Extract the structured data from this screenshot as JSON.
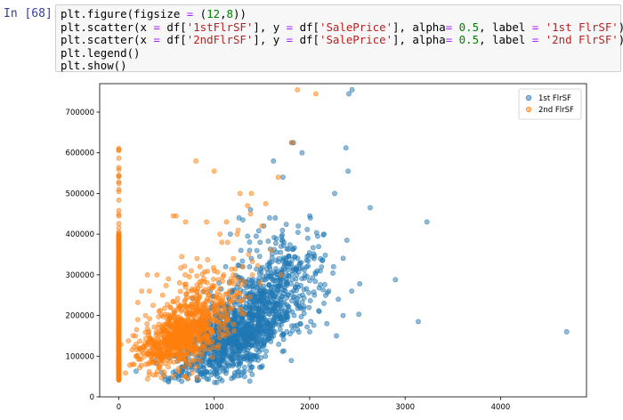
{
  "cell": {
    "prompt": "In [68]:",
    "code_lines": [
      [
        {
          "t": "plt.figure(figsize "
        },
        {
          "t": "=",
          "c": "op"
        },
        {
          "t": " ("
        },
        {
          "t": "12",
          "c": "num"
        },
        {
          "t": ","
        },
        {
          "t": "8",
          "c": "num"
        },
        {
          "t": "))"
        }
      ],
      [
        {
          "t": "plt.scatter(x "
        },
        {
          "t": "=",
          "c": "op"
        },
        {
          "t": " df["
        },
        {
          "t": "'1stFlrSF'",
          "c": "str"
        },
        {
          "t": "], y "
        },
        {
          "t": "=",
          "c": "op"
        },
        {
          "t": " df["
        },
        {
          "t": "'SalePrice'",
          "c": "str"
        },
        {
          "t": "], alpha"
        },
        {
          "t": "=",
          "c": "op"
        },
        {
          "t": " "
        },
        {
          "t": "0.5",
          "c": "num"
        },
        {
          "t": ", label "
        },
        {
          "t": "=",
          "c": "op"
        },
        {
          "t": " "
        },
        {
          "t": "'1st FlrSF'",
          "c": "str"
        },
        {
          "t": ")"
        }
      ],
      [
        {
          "t": "plt.scatter(x "
        },
        {
          "t": "=",
          "c": "op"
        },
        {
          "t": " df["
        },
        {
          "t": "'2ndFlrSF'",
          "c": "str"
        },
        {
          "t": "], y "
        },
        {
          "t": "=",
          "c": "op"
        },
        {
          "t": " df["
        },
        {
          "t": "'SalePrice'",
          "c": "str"
        },
        {
          "t": "], alpha"
        },
        {
          "t": "=",
          "c": "op"
        },
        {
          "t": " "
        },
        {
          "t": "0.5",
          "c": "num"
        },
        {
          "t": ", label "
        },
        {
          "t": "=",
          "c": "op"
        },
        {
          "t": " "
        },
        {
          "t": "'2nd FlrSF'",
          "c": "str"
        },
        {
          "t": ")"
        }
      ],
      [
        {
          "t": "plt.legend()"
        }
      ],
      [
        {
          "t": "plt.show()"
        }
      ]
    ]
  },
  "chart_data": {
    "type": "scatter",
    "xlim": [
      -200,
      4900
    ],
    "ylim": [
      0,
      770000
    ],
    "x_ticks": [
      0,
      1000,
      2000,
      3000,
      4000
    ],
    "y_ticks": [
      0,
      100000,
      200000,
      300000,
      400000,
      500000,
      600000,
      700000
    ],
    "legend_position": "top-right",
    "grid": false,
    "series": [
      {
        "name": "1st FlrSF",
        "color": "#1f77b4",
        "points": [
          [
            4692,
            160000
          ],
          [
            3228,
            430000
          ],
          [
            3138,
            185000
          ],
          [
            2898,
            288000
          ],
          [
            2633,
            465000
          ],
          [
            2524,
            278000
          ],
          [
            2515,
            203000
          ],
          [
            2444,
            755000
          ],
          [
            2411,
            745000
          ],
          [
            2402,
            555000
          ],
          [
            2380,
            612000
          ],
          [
            2390,
            385000
          ],
          [
            2261,
            500000
          ],
          [
            2046,
            340000
          ],
          [
            2000,
            445000
          ],
          [
            2200,
            260000
          ],
          [
            1831,
            625000
          ],
          [
            1810,
            625000
          ],
          [
            1720,
            540000
          ],
          [
            1640,
            440000
          ],
          [
            1620,
            580000
          ],
          [
            1580,
            320000
          ],
          [
            1520,
            420000
          ],
          [
            1440,
            395000
          ],
          [
            1390,
            340000
          ],
          [
            1300,
            435000
          ],
          [
            1380,
            460000
          ],
          [
            1700,
            370000
          ],
          [
            1850,
            270000
          ],
          [
            1950,
            300000
          ],
          [
            2050,
            250000
          ],
          [
            2100,
            210000
          ],
          [
            2150,
            230000
          ],
          [
            2300,
            240000
          ],
          [
            2250,
            320000
          ],
          [
            1900,
            180000
          ],
          [
            2000,
            160000
          ],
          [
            1760,
            160000
          ],
          [
            1620,
            150000
          ],
          [
            1500,
            140000
          ],
          [
            1450,
            100000
          ],
          [
            1350,
            90000
          ],
          [
            1200,
            80000
          ],
          [
            1100,
            70000
          ],
          [
            1000,
            60000
          ],
          [
            900,
            55000
          ],
          [
            820,
            48000
          ],
          [
            720,
            45000
          ],
          [
            660,
            38000
          ],
          [
            600,
            55000
          ],
          [
            520,
            40000
          ],
          [
            480,
            50000
          ],
          [
            1260,
            440000
          ],
          [
            1170,
            400000
          ],
          [
            1050,
            280000
          ],
          [
            960,
            260000
          ],
          [
            1120,
            320000
          ],
          [
            1280,
            360000
          ],
          [
            1350,
            395000
          ],
          [
            1480,
            380000
          ],
          [
            1580,
            440000
          ],
          [
            1680,
            340000
          ],
          [
            1760,
            300000
          ],
          [
            2150,
            400000
          ],
          [
            1980,
            390000
          ],
          [
            1880,
            420000
          ],
          [
            1920,
            600000
          ],
          [
            2080,
            310000
          ],
          [
            2180,
            180000
          ],
          [
            2280,
            150000
          ],
          [
            2350,
            200000
          ],
          [
            2440,
            260000
          ],
          [
            820,
            160000
          ],
          [
            900,
            185000
          ],
          [
            760,
            130000
          ],
          [
            640,
            110000
          ]
        ],
        "clusters": [
          {
            "cx": 1200,
            "cy": 150000,
            "sx": 240,
            "sy": 45000,
            "n": 620,
            "seed": 11
          },
          {
            "cx": 1480,
            "cy": 225000,
            "sx": 280,
            "sy": 60000,
            "n": 380,
            "seed": 23
          },
          {
            "cx": 1050,
            "cy": 125000,
            "sx": 280,
            "sy": 40000,
            "n": 250,
            "seed": 37
          },
          {
            "cx": 1750,
            "cy": 290000,
            "sx": 230,
            "sy": 55000,
            "n": 160,
            "seed": 41
          }
        ]
      },
      {
        "name": "2nd FlrSF",
        "color": "#ff7f0e",
        "points": [
          [
            1872,
            755000
          ],
          [
            2065,
            745000
          ],
          [
            1818,
            625000
          ],
          [
            808,
            580000
          ],
          [
            1000,
            555000
          ],
          [
            1670,
            540000
          ],
          [
            1270,
            500000
          ],
          [
            1390,
            500000
          ],
          [
            600,
            445000
          ],
          [
            570,
            445000
          ],
          [
            700,
            430000
          ],
          [
            920,
            430000
          ],
          [
            1130,
            430000
          ],
          [
            1250,
            410000
          ],
          [
            1350,
            470000
          ],
          [
            1540,
            475000
          ],
          [
            1380,
            450000
          ],
          [
            1140,
            380000
          ],
          [
            1080,
            380000
          ],
          [
            820,
            340000
          ],
          [
            660,
            345000
          ],
          [
            520,
            290000
          ],
          [
            400,
            300000
          ],
          [
            300,
            300000
          ],
          [
            240,
            260000
          ],
          [
            200,
            232000
          ],
          [
            320,
            260000
          ],
          [
            460,
            250000
          ],
          [
            620,
            230000
          ],
          [
            700,
            270000
          ],
          [
            760,
            310000
          ],
          [
            850,
            320000
          ],
          [
            1000,
            310000
          ],
          [
            1100,
            300000
          ],
          [
            1200,
            340000
          ],
          [
            1300,
            320000
          ],
          [
            1400,
            300000
          ],
          [
            1060,
            400000
          ],
          [
            1240,
            400000
          ],
          [
            1360,
            350000
          ],
          [
            1500,
            420000
          ],
          [
            1600,
            360000
          ],
          [
            1700,
            300000
          ],
          [
            1480,
            280000
          ],
          [
            1320,
            280000
          ],
          [
            1200,
            300000
          ],
          [
            1060,
            250000
          ],
          [
            1160,
            260000
          ],
          [
            360,
            140000
          ],
          [
            300,
            130000
          ],
          [
            260,
            125000
          ],
          [
            220,
            120000
          ],
          [
            180,
            100000
          ],
          [
            160,
            80000
          ],
          [
            200,
            190000
          ],
          [
            280,
            200000
          ],
          [
            420,
            210000
          ],
          [
            540,
            220000
          ],
          [
            900,
            190000
          ],
          [
            960,
            240000
          ],
          [
            1020,
            215000
          ],
          [
            740,
            200000
          ]
        ],
        "clusters": [
          {
            "cx": 700,
            "cy": 150000,
            "sx": 210,
            "sy": 38000,
            "n": 520,
            "seed": 53
          },
          {
            "cx": 820,
            "cy": 205000,
            "sx": 230,
            "sy": 48000,
            "n": 220,
            "seed": 67
          },
          {
            "cx": 470,
            "cy": 120000,
            "sx": 200,
            "sy": 30000,
            "n": 140,
            "seed": 71
          }
        ],
        "zero_column": {
          "x": 0,
          "y_min": 35000,
          "y_max": 615000,
          "dense_min": 40000,
          "dense_max": 400000,
          "n": 600,
          "seed": 83
        }
      }
    ]
  }
}
